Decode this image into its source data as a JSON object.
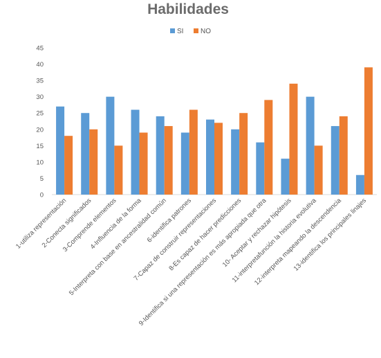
{
  "chart_data": {
    "type": "bar",
    "title": "Habilidades",
    "categories": [
      "1-utiliza representación",
      "2-Conecta  significados",
      "3-Comprende elementos",
      "4-Influencia de la forma",
      "5-Interpreta con base en ancestralidad común",
      "6-identifica patrones",
      "7-Capaz de construir representaciones",
      "8-Es capaz de hacer predicciones",
      "9-Identifica si una representación es más apropiada que otra",
      "10- Aceptar y rechazar hipótesis",
      "11-interpretafunción  la historia evolutiva",
      "12-interpreta mapeando la descendencia",
      "13-identifica los principales linajes"
    ],
    "series": [
      {
        "name": "SI",
        "color": "#5b9bd5",
        "values": [
          27,
          25,
          30,
          26,
          24,
          19,
          23,
          20,
          16,
          11,
          30,
          21,
          6
        ]
      },
      {
        "name": "NO",
        "color": "#ed7d31",
        "values": [
          18,
          20,
          15,
          19,
          21,
          26,
          22,
          25,
          29,
          34,
          15,
          24,
          39
        ]
      }
    ],
    "yticks": [
      0,
      5,
      10,
      15,
      20,
      25,
      30,
      35,
      40,
      45
    ],
    "ylim": [
      0,
      45
    ],
    "grid": false,
    "legend": "top-center"
  }
}
